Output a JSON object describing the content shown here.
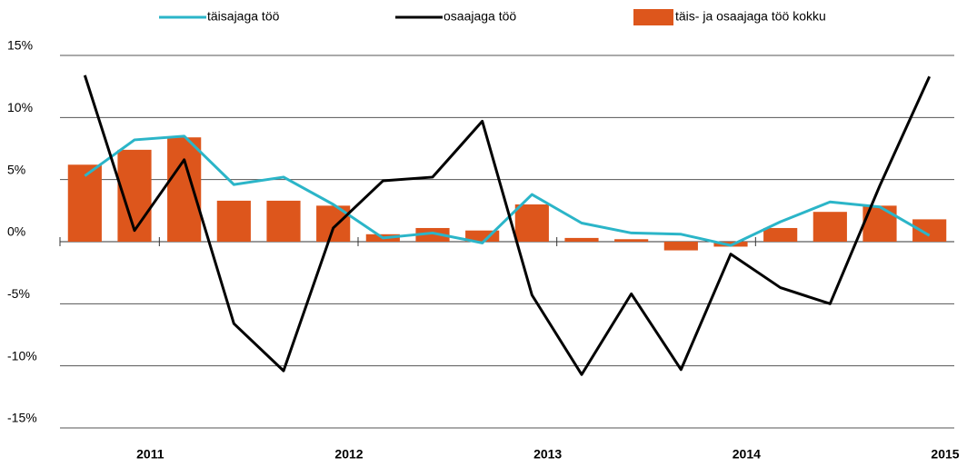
{
  "chart_data": {
    "type": "bar_line",
    "categories": [
      null,
      "2011",
      null,
      null,
      null,
      "2012",
      null,
      null,
      null,
      "2013",
      null,
      null,
      null,
      "2014",
      null,
      null,
      null,
      "2015"
    ],
    "series": [
      {
        "name": "täisajaga töö",
        "kind": "line",
        "color": "#2bb5c8",
        "values": [
          5.3,
          8.2,
          8.5,
          4.6,
          5.2,
          3.0,
          0.3,
          0.7,
          -0.1,
          3.8,
          1.5,
          0.7,
          0.6,
          -0.3,
          1.6,
          3.2,
          2.8,
          0.5
        ]
      },
      {
        "name": "osaajaga töö",
        "kind": "line",
        "color": "#000000",
        "values": [
          13.4,
          0.9,
          6.6,
          -6.6,
          -10.4,
          1.1,
          4.9,
          5.2,
          9.7,
          -4.3,
          -10.7,
          -4.2,
          -10.3,
          -1.0,
          -3.7,
          -5.0,
          4.5,
          13.3
        ]
      },
      {
        "name": "täis- ja osaajaga töö kokku",
        "kind": "bar",
        "color": "#dd561c",
        "values": [
          6.2,
          7.4,
          8.4,
          3.3,
          3.3,
          2.9,
          0.6,
          1.1,
          0.9,
          3.0,
          0.3,
          0.2,
          -0.7,
          -0.4,
          1.1,
          2.4,
          2.9,
          1.8
        ]
      }
    ],
    "ylim": [
      -15,
      15
    ],
    "yticks": [
      {
        "value": -15,
        "label": "-15%"
      },
      {
        "value": -10,
        "label": "-10%"
      },
      {
        "value": -5,
        "label": "-5%"
      },
      {
        "value": 0,
        "label": "0%"
      },
      {
        "value": 5,
        "label": "5%"
      },
      {
        "value": 10,
        "label": "10%"
      },
      {
        "value": 15,
        "label": "15%"
      }
    ],
    "grid": true
  }
}
